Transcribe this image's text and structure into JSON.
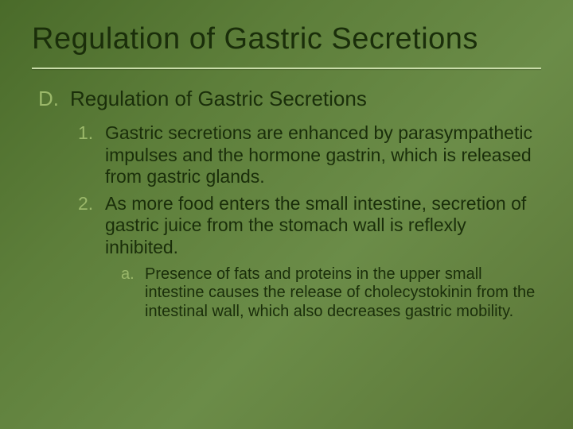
{
  "slide": {
    "title": "Regulation of Gastric Secretions",
    "background_gradient": [
      "#4a6b2a",
      "#5d7e3a",
      "#6b8c48",
      "#5a7536"
    ],
    "underline_color": "#c8dca8",
    "text_color": "#1a2e0a",
    "marker_color": "#9bb86a",
    "section": {
      "marker": "D.",
      "label": "Regulation of Gastric Secretions",
      "items": [
        {
          "marker": "1.",
          "text": "Gastric secretions are enhanced by parasympathetic impulses and the hormone gastrin, which is released from gastric glands."
        },
        {
          "marker": "2.",
          "text": "As more food enters the small intestine, secretion of gastric juice from the stomach wall is reflexly inhibited.",
          "subitems": [
            {
              "marker": "a.",
              "text": "Presence of fats and proteins in the upper small intestine causes the release of cholecystokinin from the intestinal wall, which also decreases gastric mobility."
            }
          ]
        }
      ]
    },
    "typography": {
      "title_fontsize": 38,
      "level_d_fontsize": 26,
      "level_num_fontsize": 23,
      "level_alpha_fontsize": 20,
      "font_family": "Gill Sans, Trebuchet MS, Verdana, sans-serif"
    }
  }
}
